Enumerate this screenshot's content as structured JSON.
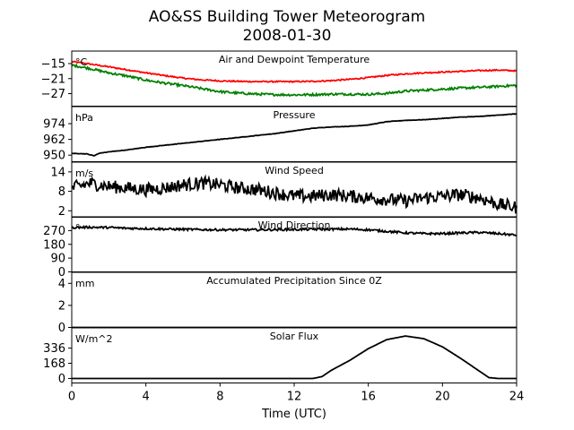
{
  "figure": {
    "title_line1": "AO&SS Building Tower Meteorogram",
    "title_line2": "2008-01-30",
    "xlabel": "Time (UTC)"
  },
  "chart_data": [
    {
      "id": "temperature",
      "type": "line",
      "title": "Air and Dewpoint Temperature",
      "unit": "°C",
      "ylim": [
        -32,
        -10
      ],
      "yticks": [
        -15,
        -21,
        -27
      ],
      "ytick_labels": [
        "−15",
        "−21",
        "−27"
      ],
      "xlim": [
        0,
        24
      ],
      "series": [
        {
          "color": "#ff0000",
          "x": [
            0,
            1,
            2,
            3,
            4,
            5,
            6,
            7,
            8,
            9,
            10,
            11,
            12,
            13,
            14,
            15,
            16,
            17,
            18,
            19,
            20,
            21,
            22,
            23,
            24
          ],
          "y": [
            -14.2,
            -15.2,
            -16.3,
            -17.5,
            -18.7,
            -19.8,
            -20.8,
            -21.5,
            -21.9,
            -22.1,
            -22.2,
            -22.2,
            -22.2,
            -22.1,
            -21.8,
            -21.3,
            -20.6,
            -19.7,
            -19.1,
            -18.7,
            -18.4,
            -18.1,
            -17.8,
            -17.6,
            -17.9
          ],
          "noise": 0.25
        },
        {
          "color": "#008000",
          "x": [
            0,
            1,
            2,
            3,
            4,
            5,
            6,
            7,
            8,
            9,
            10,
            11,
            12,
            13,
            14,
            15,
            16,
            17,
            18,
            19,
            20,
            21,
            22,
            23,
            24
          ],
          "y": [
            -15.6,
            -17.0,
            -18.7,
            -20.0,
            -21.6,
            -22.8,
            -23.8,
            -25.0,
            -26.2,
            -26.8,
            -27.2,
            -27.4,
            -27.5,
            -27.4,
            -27.2,
            -27.2,
            -27.3,
            -26.9,
            -26.0,
            -25.6,
            -25.2,
            -24.8,
            -24.5,
            -24.1,
            -23.7
          ],
          "noise": 0.45
        }
      ]
    },
    {
      "id": "pressure",
      "type": "line",
      "title": "Pressure",
      "unit": "hPa",
      "ylim": [
        945,
        987
      ],
      "yticks": [
        950,
        962,
        974
      ],
      "ytick_labels": [
        "950",
        "962",
        "974"
      ],
      "xlim": [
        0,
        24
      ],
      "series": [
        {
          "color": "#000000",
          "x": [
            0,
            0.8,
            1.2,
            1.5,
            2,
            3,
            4,
            5,
            6,
            7,
            8,
            9,
            10,
            11,
            12,
            13,
            14,
            15,
            16,
            17,
            18,
            19,
            20,
            21,
            22,
            23,
            24
          ],
          "y": [
            951.3,
            951.0,
            949.5,
            951.5,
            952.5,
            954.0,
            956.0,
            957.5,
            959.0,
            960.5,
            962.0,
            963.5,
            965.0,
            966.5,
            968.5,
            970.5,
            971.5,
            972.0,
            973.0,
            975.5,
            976.5,
            977.0,
            978.0,
            979.0,
            979.5,
            980.5,
            981.5
          ],
          "noise": 0.15
        }
      ]
    },
    {
      "id": "wind_speed",
      "type": "line",
      "title": "Wind Speed",
      "unit": "m/s",
      "ylim": [
        0,
        17
      ],
      "yticks": [
        2,
        8,
        14
      ],
      "ytick_labels": [
        "2",
        "8",
        "14"
      ],
      "xlim": [
        0,
        24
      ],
      "series": [
        {
          "color": "#000000",
          "x": [
            0,
            1,
            2,
            3,
            4,
            5,
            6,
            7,
            8,
            9,
            10,
            11,
            12,
            13,
            14,
            15,
            16,
            17,
            18,
            19,
            20,
            21,
            22,
            23,
            24
          ],
          "y": [
            9.0,
            10.5,
            9.5,
            9.0,
            8.5,
            9.0,
            10.0,
            10.5,
            10.0,
            9.0,
            8.5,
            7.5,
            6.5,
            6.5,
            7.0,
            6.5,
            6.0,
            5.5,
            5.0,
            6.0,
            6.5,
            7.0,
            6.0,
            4.0,
            3.0
          ],
          "noise": 2.0
        }
      ]
    },
    {
      "id": "wind_direction",
      "type": "line",
      "title": "Wind Direction",
      "unit": "°",
      "ylim": [
        0,
        360
      ],
      "yticks": [
        0,
        90,
        180,
        270
      ],
      "ytick_labels": [
        "0",
        "90",
        "180",
        "270"
      ],
      "xlim": [
        0,
        24
      ],
      "series": [
        {
          "color": "#000000",
          "x": [
            0,
            1,
            2,
            3,
            4,
            5,
            6,
            7,
            8,
            9,
            10,
            11,
            12,
            13,
            14,
            15,
            16,
            17,
            18,
            19,
            20,
            21,
            22,
            23,
            24
          ],
          "y": [
            290,
            292,
            290,
            285,
            283,
            280,
            278,
            276,
            275,
            275,
            275,
            276,
            277,
            278,
            279,
            280,
            275,
            265,
            255,
            250,
            250,
            255,
            258,
            250,
            240
          ],
          "noise": 7
        }
      ]
    },
    {
      "id": "precipitation",
      "type": "line",
      "title": "Accumulated Precipitation Since 0Z",
      "unit": "mm",
      "ylim": [
        0,
        5
      ],
      "yticks": [
        0,
        2,
        4
      ],
      "ytick_labels": [
        "0",
        "2",
        "4"
      ],
      "xlim": [
        0,
        24
      ],
      "series": [
        {
          "color": "#000000",
          "x": [
            0,
            24
          ],
          "y": [
            0,
            0
          ],
          "noise": 0
        }
      ]
    },
    {
      "id": "solar_flux",
      "type": "line",
      "title": "Solar Flux",
      "unit": "W/m^2",
      "ylim": [
        -50,
        560
      ],
      "yticks": [
        0,
        168,
        336
      ],
      "ytick_labels": [
        "0",
        "168",
        "336"
      ],
      "xlim": [
        0,
        24
      ],
      "series": [
        {
          "color": "#000000",
          "x": [
            0,
            13,
            13.5,
            14,
            15,
            16,
            17,
            18,
            19,
            20,
            21,
            22,
            22.5,
            23,
            24
          ],
          "y": [
            0,
            0,
            20,
            90,
            200,
            330,
            430,
            470,
            440,
            350,
            220,
            80,
            10,
            0,
            0
          ],
          "noise": 0
        }
      ]
    }
  ],
  "xaxis": {
    "ticks": [
      0,
      4,
      8,
      12,
      16,
      20,
      24
    ],
    "tick_labels": [
      "0",
      "4",
      "8",
      "12",
      "16",
      "20",
      "24"
    ]
  }
}
